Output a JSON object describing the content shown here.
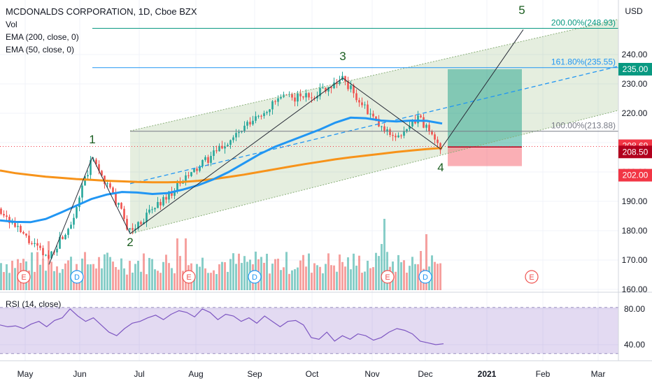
{
  "chart_data": {
    "type": "candlestick",
    "title": "MCDONALDS CORPORATION, 1D, Cboe BZX",
    "currency": "USD",
    "indicators": [
      "Vol",
      "EMA (200, close, 0)",
      "EMA (50, close, 0)"
    ],
    "x_axis_labels": [
      "May",
      "Jun",
      "Jul",
      "Aug",
      "Sep",
      "Oct",
      "Nov",
      "Dec",
      "2021",
      "Feb",
      "Mar"
    ],
    "y_ticks": [
      160,
      170,
      180,
      190,
      200,
      210,
      220,
      230,
      240
    ],
    "ylim": [
      157,
      252
    ],
    "price_badges": [
      {
        "value": "235.00",
        "color": "#089981"
      },
      {
        "value": "208.69",
        "color": "#f23645"
      },
      {
        "value": "208.50",
        "color": "#b2001d"
      },
      {
        "value": "202.00",
        "color": "#f23645"
      }
    ],
    "fib_levels": [
      {
        "label": "200.00%(248.93)",
        "value": 248.93,
        "color": "#089981"
      },
      {
        "label": "161.80%(235.55)",
        "value": 235.55,
        "color": "#2196f3"
      },
      {
        "label": "100.00%(213.88)",
        "value": 213.88,
        "color": "#787b86"
      }
    ],
    "wave_labels": [
      {
        "label": "1",
        "value": 205.5
      },
      {
        "label": "2",
        "value": 179.0
      },
      {
        "label": "3",
        "value": 232.0
      },
      {
        "label": "4",
        "value": 207.5
      },
      {
        "label": "5",
        "value": 248.5
      }
    ],
    "wave_points": [
      168.5,
      205.0,
      179.0,
      232.0,
      207.8,
      248.5
    ],
    "channel": {
      "lower_start": 179,
      "lower_end": 221,
      "upper_start": 214,
      "upper_end": 252,
      "mid_start": 196,
      "mid_end": 236
    },
    "position": {
      "entry": 208.5,
      "target": 235.0,
      "stop": 202.0
    },
    "ema200": [
      200.5,
      199.6,
      199.0,
      198.4,
      198.0,
      197.6,
      197.3,
      197.0,
      196.8,
      196.6,
      196.5,
      196.5,
      196.6,
      197.0,
      197.6,
      198.3,
      199.1,
      200.0,
      200.9,
      201.8,
      202.7,
      203.5,
      204.3,
      205.0,
      205.6,
      206.2,
      206.8,
      207.3,
      207.8,
      208.2
    ],
    "ema50": [
      183.5,
      183.0,
      182.9,
      184.0,
      186.2,
      188.5,
      190.8,
      192.3,
      193.2,
      193.0,
      192.5,
      192.8,
      194.0,
      195.5,
      197.5,
      200.0,
      203.0,
      206.0,
      208.5,
      210.5,
      212.5,
      214.5,
      216.8,
      218.5,
      218.3,
      217.5,
      217.2,
      217.5,
      217.4,
      216.5
    ],
    "rsi_label": "RSI (14, close)",
    "rsi_ticks": [
      40,
      80
    ],
    "rsi_values": [
      62,
      60,
      61,
      58,
      63,
      66,
      60,
      67,
      70,
      80,
      72,
      66,
      70,
      62,
      54,
      50,
      58,
      64,
      66,
      70,
      73,
      68,
      74,
      78,
      76,
      71,
      80,
      76,
      68,
      74,
      72,
      66,
      70,
      64,
      72,
      66,
      60,
      66,
      67,
      62,
      48,
      46,
      54,
      44,
      50,
      46,
      52,
      50,
      45,
      48,
      54,
      58,
      56,
      52,
      44,
      42,
      40,
      41
    ],
    "earnings_markers": [
      "E",
      "E",
      "E",
      "E"
    ],
    "dividend_markers": [
      "D",
      "D",
      "D"
    ]
  }
}
